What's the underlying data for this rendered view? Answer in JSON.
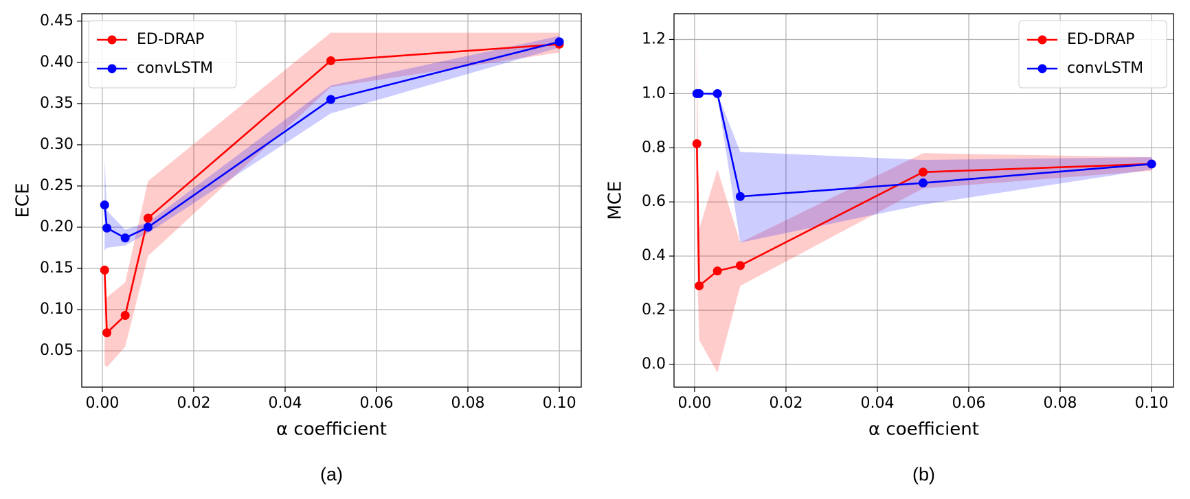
{
  "chart_data": [
    {
      "type": "line",
      "caption": "(a)",
      "xlabel": "α coefficient",
      "ylabel": "ECE",
      "grid": true,
      "legend": "upper left",
      "x": [
        0.0005,
        0.001,
        0.005,
        0.01,
        0.05,
        0.1
      ],
      "xlim": [
        -0.0045,
        0.1048
      ],
      "ylim": [
        0.006,
        0.459
      ],
      "xticks": [
        {
          "value": 0,
          "label": "0.00"
        },
        {
          "value": 0.02,
          "label": "0.02"
        },
        {
          "value": 0.04,
          "label": "0.04"
        },
        {
          "value": 0.06,
          "label": "0.06"
        },
        {
          "value": 0.08,
          "label": "0.08"
        },
        {
          "value": 0.1,
          "label": "0.10"
        }
      ],
      "yticks": [
        {
          "value": 0.05,
          "label": "0.05"
        },
        {
          "value": 0.1,
          "label": "0.10"
        },
        {
          "value": 0.15,
          "label": "0.15"
        },
        {
          "value": 0.2,
          "label": "0.20"
        },
        {
          "value": 0.25,
          "label": "0.25"
        },
        {
          "value": 0.3,
          "label": "0.30"
        },
        {
          "value": 0.35,
          "label": "0.35"
        },
        {
          "value": 0.4,
          "label": "0.40"
        },
        {
          "value": 0.45,
          "label": "0.45"
        }
      ],
      "series": [
        {
          "name": "ED-DRAP",
          "color": "#ff0000",
          "values": [
            0.148,
            0.072,
            0.093,
            0.211,
            0.402,
            0.422
          ],
          "lower": [
            0.033,
            0.03,
            0.055,
            0.165,
            0.37,
            0.412
          ],
          "upper": [
            0.115,
            0.115,
            0.133,
            0.256,
            0.436,
            0.436
          ]
        },
        {
          "name": "convLSTM",
          "color": "#0000ff",
          "values": [
            0.227,
            0.199,
            0.187,
            0.2,
            0.355,
            0.425
          ],
          "lower": [
            0.172,
            0.175,
            0.178,
            0.193,
            0.338,
            0.418
          ],
          "upper": [
            0.283,
            0.22,
            0.197,
            0.206,
            0.372,
            0.432
          ]
        }
      ]
    },
    {
      "type": "line",
      "caption": "(b)",
      "xlabel": "α coefficient",
      "ylabel": "MCE",
      "grid": true,
      "legend": "upper right",
      "x": [
        0.0005,
        0.001,
        0.005,
        0.01,
        0.05,
        0.1
      ],
      "xlim": [
        -0.0045,
        0.1048
      ],
      "ylim": [
        -0.084,
        1.295
      ],
      "xticks": [
        {
          "value": 0,
          "label": "0.00"
        },
        {
          "value": 0.02,
          "label": "0.02"
        },
        {
          "value": 0.04,
          "label": "0.04"
        },
        {
          "value": 0.06,
          "label": "0.06"
        },
        {
          "value": 0.08,
          "label": "0.08"
        },
        {
          "value": 0.1,
          "label": "0.10"
        }
      ],
      "yticks": [
        {
          "value": 0,
          "label": "0.0"
        },
        {
          "value": 0.2,
          "label": "0.2"
        },
        {
          "value": 0.4,
          "label": "0.4"
        },
        {
          "value": 0.6,
          "label": "0.6"
        },
        {
          "value": 0.8,
          "label": "0.8"
        },
        {
          "value": 1,
          "label": "1.0"
        },
        {
          "value": 1.2,
          "label": "1.2"
        }
      ],
      "series": [
        {
          "name": "ED-DRAP",
          "color": "#ff0000",
          "values": [
            0.815,
            0.29,
            0.345,
            0.365,
            0.71,
            0.74
          ],
          "lower": [
            0.4,
            0.09,
            -0.03,
            0.29,
            0.65,
            0.715
          ],
          "upper": [
            1.23,
            0.5,
            0.72,
            0.45,
            0.78,
            0.765
          ]
        },
        {
          "name": "convLSTM",
          "color": "#0000ff",
          "values": [
            1.0,
            1.0,
            1.0,
            0.62,
            0.67,
            0.74
          ],
          "lower": [
            1.0,
            1.0,
            0.99,
            0.45,
            0.59,
            0.72
          ],
          "upper": [
            1.0,
            1.0,
            1.0,
            0.785,
            0.755,
            0.765
          ]
        }
      ]
    }
  ]
}
